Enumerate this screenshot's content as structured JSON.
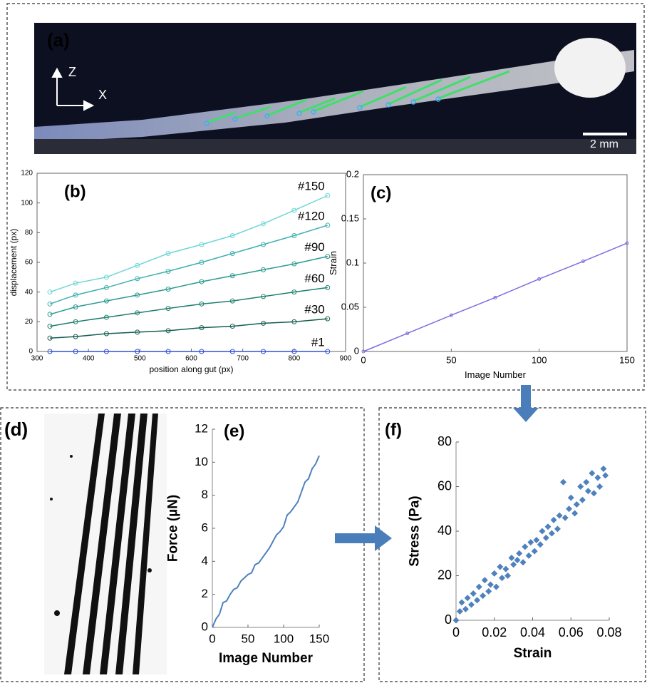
{
  "panel_a": {
    "label": "(a)",
    "axis_z": "Z",
    "axis_x": "X",
    "scale_bar": "2 mm"
  },
  "panel_d": {
    "label": "(d)"
  },
  "chart_data": [
    {
      "type": "line",
      "title": "(b)",
      "x_label": "position along gut (px)",
      "y_label": "displacement (px)",
      "x": [
        325,
        375,
        435,
        495,
        555,
        620,
        680,
        740,
        800,
        865
      ],
      "series": [
        {
          "name": "#150",
          "color": "#6fd6d6",
          "values": [
            40,
            46,
            50,
            58,
            66,
            72,
            78,
            86,
            95,
            105
          ]
        },
        {
          "name": "#120",
          "color": "#3fb0b0",
          "values": [
            32,
            38,
            43,
            49,
            54,
            60,
            66,
            72,
            78,
            85
          ]
        },
        {
          "name": "#90",
          "color": "#2a9a90",
          "values": [
            25,
            30,
            34,
            38,
            42,
            47,
            51,
            55,
            59,
            64
          ]
        },
        {
          "name": "#60",
          "color": "#1e7f70",
          "values": [
            17,
            20,
            23,
            26,
            29,
            32,
            34,
            37,
            40,
            43
          ]
        },
        {
          "name": "#30",
          "color": "#145e50",
          "values": [
            9,
            10,
            12,
            13,
            14,
            16,
            17,
            19,
            20,
            22
          ]
        },
        {
          "name": "#1",
          "color": "#3050d0",
          "values": [
            0,
            0,
            0,
            0,
            0,
            0,
            0,
            0,
            0,
            0
          ]
        }
      ],
      "markers": true,
      "xlim": [
        300,
        900
      ],
      "xticks": [
        300,
        400,
        500,
        600,
        700,
        800,
        900
      ],
      "ylim": [
        0,
        120
      ],
      "yticks": [
        0,
        20,
        40,
        60,
        80,
        100,
        120
      ]
    },
    {
      "type": "line",
      "title": "(c)",
      "x_label": "Image Number",
      "y_label": "Strain",
      "x": [
        0,
        25,
        50,
        75,
        100,
        125,
        150
      ],
      "series": [
        {
          "color": "#7b6fe0",
          "values": [
            0,
            0.0205,
            0.041,
            0.061,
            0.082,
            0.102,
            0.1225
          ]
        }
      ],
      "markers": true,
      "xlim": [
        0,
        150
      ],
      "xticks": [
        0,
        50,
        100,
        150
      ],
      "ylim": [
        0,
        0.2
      ],
      "yticks": [
        0,
        0.05,
        0.1,
        0.15,
        0.2
      ]
    },
    {
      "type": "line",
      "title": "(e)",
      "x_label": "Image Number",
      "y_label": "Force (µN)",
      "x": [
        0,
        5,
        10,
        15,
        20,
        25,
        30,
        35,
        40,
        45,
        50,
        55,
        60,
        65,
        70,
        75,
        80,
        85,
        90,
        95,
        100,
        105,
        110,
        115,
        120,
        125,
        130,
        135,
        140,
        145,
        150
      ],
      "series": [
        {
          "color": "#4f81bd",
          "values": [
            0,
            0.5,
            0.8,
            1.5,
            1.6,
            2.0,
            2.3,
            2.4,
            2.8,
            3.0,
            3.2,
            3.3,
            3.8,
            3.9,
            4.2,
            4.5,
            4.8,
            5.2,
            5.6,
            5.8,
            6.1,
            6.8,
            7.0,
            7.3,
            7.6,
            8.2,
            8.8,
            9.0,
            9.6,
            9.9,
            10.4
          ]
        }
      ],
      "markers": false,
      "xlim": [
        0,
        150
      ],
      "xticks": [
        0,
        50,
        100,
        150
      ],
      "ylim": [
        0,
        12
      ],
      "yticks": [
        0,
        2,
        4,
        6,
        8,
        10,
        12
      ]
    },
    {
      "type": "scatter",
      "title": "(f)",
      "x_label": "Strain",
      "y_label": "Stress (Pa)",
      "color": "#4f81bd",
      "x": [
        0,
        0.002,
        0.003,
        0.005,
        0.006,
        0.008,
        0.009,
        0.011,
        0.012,
        0.014,
        0.015,
        0.017,
        0.018,
        0.02,
        0.021,
        0.023,
        0.024,
        0.026,
        0.027,
        0.029,
        0.03,
        0.032,
        0.033,
        0.035,
        0.036,
        0.038,
        0.039,
        0.041,
        0.042,
        0.044,
        0.045,
        0.047,
        0.048,
        0.05,
        0.051,
        0.053,
        0.054,
        0.056,
        0.057,
        0.059,
        0.06,
        0.062,
        0.063,
        0.065,
        0.066,
        0.068,
        0.069,
        0.071,
        0.072,
        0.074,
        0.075,
        0.077,
        0.078
      ],
      "values": [
        0,
        4,
        8,
        5,
        10,
        7,
        12,
        9,
        15,
        11,
        18,
        13,
        16,
        21,
        15,
        24,
        19,
        23,
        20,
        28,
        25,
        27,
        30,
        26,
        33,
        29,
        35,
        31,
        36,
        34,
        40,
        37,
        42,
        39,
        45,
        41,
        47,
        62,
        46,
        50,
        55,
        48,
        52,
        60,
        54,
        62,
        58,
        66,
        57,
        64,
        60,
        68,
        65
      ],
      "xlim": [
        0,
        0.08
      ],
      "xticks": [
        0,
        0.02,
        0.04,
        0.06,
        0.08
      ],
      "ylim": [
        0,
        80
      ],
      "yticks": [
        0,
        20,
        40,
        60,
        80
      ]
    }
  ]
}
